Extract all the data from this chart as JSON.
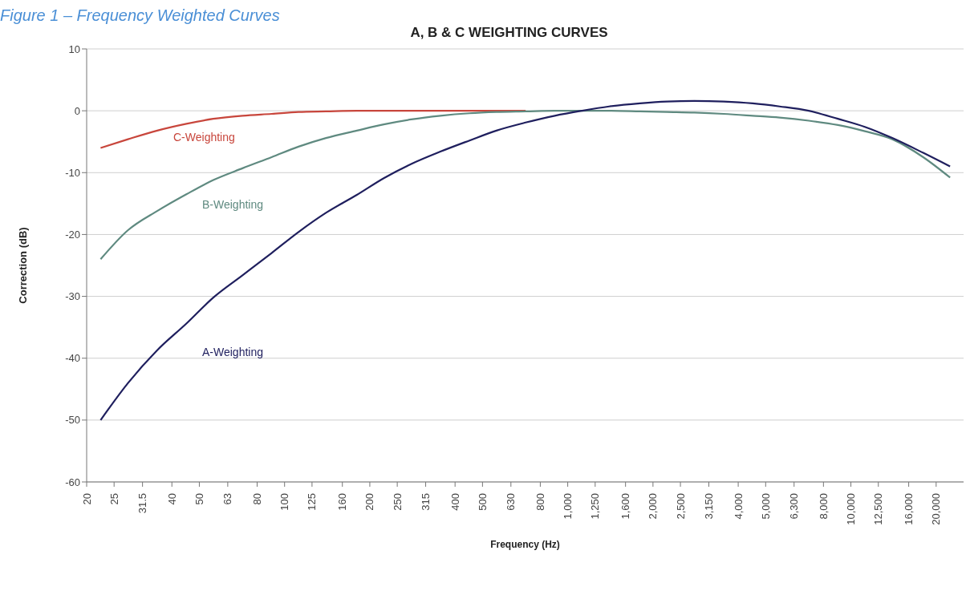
{
  "chart_data": {
    "type": "line",
    "title": "A, B & C WEIGHTING CURVES",
    "xlabel": "Frequency (Hz)",
    "ylabel": "Correction (dB)",
    "annotations": [
      "Figure 1 – Frequency Weighted Curves"
    ],
    "log": "x",
    "xlim": [
      20,
      25000
    ],
    "xticks": [
      20,
      25,
      31.5,
      40,
      50,
      63,
      80,
      100,
      125,
      160,
      200,
      250,
      315,
      400,
      500,
      630,
      800,
      {
        "value": 1000,
        "label": "1,000"
      },
      {
        "value": 1250,
        "label": "1,250"
      },
      {
        "value": 1600,
        "label": "1,600"
      },
      {
        "value": 2000,
        "label": "2,000"
      },
      {
        "value": 2500,
        "label": "2,500"
      },
      {
        "value": 3150,
        "label": "3,150"
      },
      {
        "value": 4000,
        "label": "4,000"
      },
      {
        "value": 5000,
        "label": "5,000"
      },
      {
        "value": 6300,
        "label": "6,300"
      },
      {
        "value": 8000,
        "label": "8,000"
      },
      {
        "value": 10000,
        "label": "10,000"
      },
      {
        "value": 12500,
        "label": "12,500"
      },
      {
        "value": 16000,
        "label": "16,000"
      },
      {
        "value": 20000,
        "label": "20,000"
      }
    ],
    "ylim": [
      -60,
      10
    ],
    "yticks": [
      -60,
      -50,
      -40,
      -30,
      -20,
      -10,
      0,
      10
    ],
    "grid": "y",
    "legend": false,
    "marker": "none",
    "line_style": "solid",
    "x": [
      22.4,
      28,
      35.5,
      45,
      56,
      71,
      90,
      112,
      140,
      180,
      224,
      280,
      355,
      450,
      560,
      710,
      900,
      1120,
      1400,
      1800,
      2240,
      2800,
      3550,
      4500,
      5600,
      7100,
      9000,
      11200,
      14000,
      18000,
      22400
    ],
    "series": [
      {
        "name": "C-Weighting",
        "color": "#c8463c",
        "values": [
          -6,
          -4.6,
          -3.2,
          -2.1,
          -1.3,
          -0.8,
          -0.5,
          -0.2,
          -0.1,
          0,
          0,
          0,
          0,
          0,
          0,
          0,
          null,
          null,
          null,
          null,
          null,
          null,
          null,
          null,
          null,
          null,
          null,
          null,
          null,
          null,
          null
        ]
      },
      {
        "name": "B-Weighting",
        "color": "#5f8a80",
        "values": [
          -24,
          -19.3,
          -16.2,
          -13.5,
          -11.2,
          -9.3,
          -7.5,
          -5.8,
          -4.4,
          -3.2,
          -2.2,
          -1.4,
          -0.8,
          -0.4,
          -0.2,
          -0.1,
          0,
          0,
          0,
          -0.1,
          -0.2,
          -0.3,
          -0.5,
          -0.8,
          -1.1,
          -1.6,
          -2.3,
          -3.3,
          -4.6,
          -7.5,
          -10.8
        ]
      },
      {
        "name": "A-Weighting",
        "color": "#1f1f5e",
        "values": [
          -50,
          -44,
          -38.7,
          -34.4,
          -30.2,
          -26.6,
          -23,
          -19.6,
          -16.5,
          -13.6,
          -10.9,
          -8.6,
          -6.6,
          -4.8,
          -3.2,
          -1.9,
          -0.8,
          0,
          0.7,
          1.2,
          1.5,
          1.6,
          1.5,
          1.2,
          0.7,
          0,
          -1.3,
          -2.6,
          -4.4,
          -6.8,
          -9
        ]
      }
    ]
  }
}
